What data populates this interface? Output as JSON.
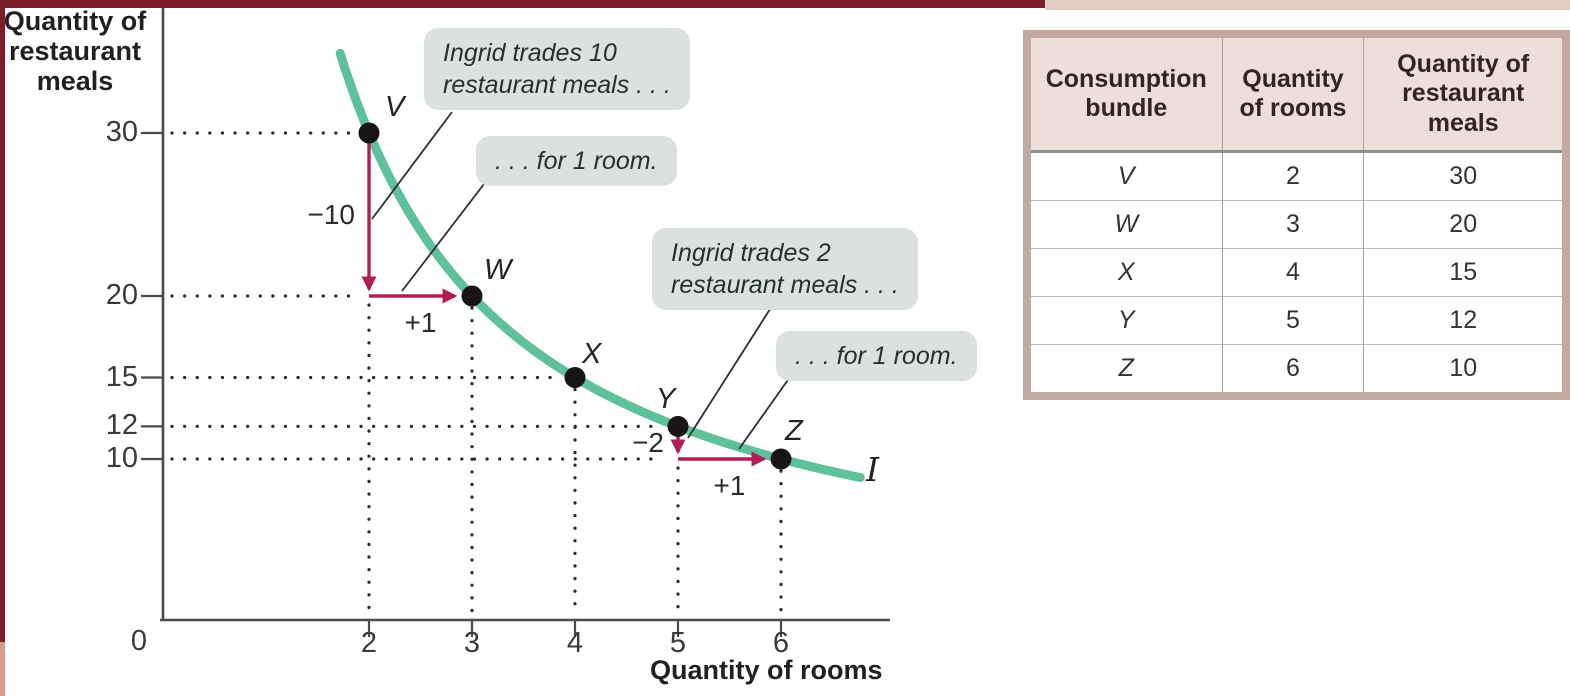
{
  "figure": {
    "y_axis_title": "Quantity of\nrestaurant\nmeals",
    "x_axis_title": "Quantity of rooms",
    "origin_label": "0",
    "curve_label": "I"
  },
  "chart_data": {
    "type": "line",
    "xlabel": "Quantity of rooms",
    "ylabel": "Quantity of restaurant meals",
    "x_ticks": [
      2,
      3,
      4,
      5,
      6
    ],
    "y_ticks": [
      30,
      20,
      15,
      12,
      10
    ],
    "xlim": [
      0,
      7
    ],
    "ylim": [
      0,
      36
    ],
    "grid": "dotted guides from axes to each point",
    "curve": {
      "label": "I",
      "relation": "meals = 60 / rooms",
      "domain_rooms": [
        1.72,
        6.8
      ]
    },
    "points": [
      {
        "bundle": "V",
        "rooms": 2,
        "meals": 30
      },
      {
        "bundle": "W",
        "rooms": 3,
        "meals": 20
      },
      {
        "bundle": "X",
        "rooms": 4,
        "meals": 15
      },
      {
        "bundle": "Y",
        "rooms": 5,
        "meals": 12
      },
      {
        "bundle": "Z",
        "rooms": 6,
        "meals": 10
      }
    ],
    "trades": [
      {
        "from": "V",
        "to": "W",
        "meals_label": "−10",
        "rooms_label": "+1"
      },
      {
        "from": "Y",
        "to": "Z",
        "meals_label": "−2",
        "rooms_label": "+1"
      }
    ],
    "callouts": [
      {
        "text": "Ingrid trades 10\nrestaurant meals . . ."
      },
      {
        "text": ". . . for 1 room."
      },
      {
        "text": "Ingrid trades 2\nrestaurant meals . . ."
      },
      {
        "text": ". . . for 1 room."
      }
    ]
  },
  "table": {
    "headers": [
      "Consumption\nbundle",
      "Quantity\nof rooms",
      "Quantity of\nrestaurant\nmeals"
    ],
    "rows": [
      [
        "V",
        "2",
        "30"
      ],
      [
        "W",
        "3",
        "20"
      ],
      [
        "X",
        "4",
        "15"
      ],
      [
        "Y",
        "5",
        "12"
      ],
      [
        "Z",
        "6",
        "10"
      ]
    ]
  },
  "colors": {
    "curve": "#5ec19b",
    "arrow": "#b11e56",
    "point": "#191415",
    "callout_bg": "#dbe2de",
    "table_border": "#c3a9a2",
    "table_header_bg": "#ecdfd8",
    "page_edge": "#7c1d2a"
  }
}
